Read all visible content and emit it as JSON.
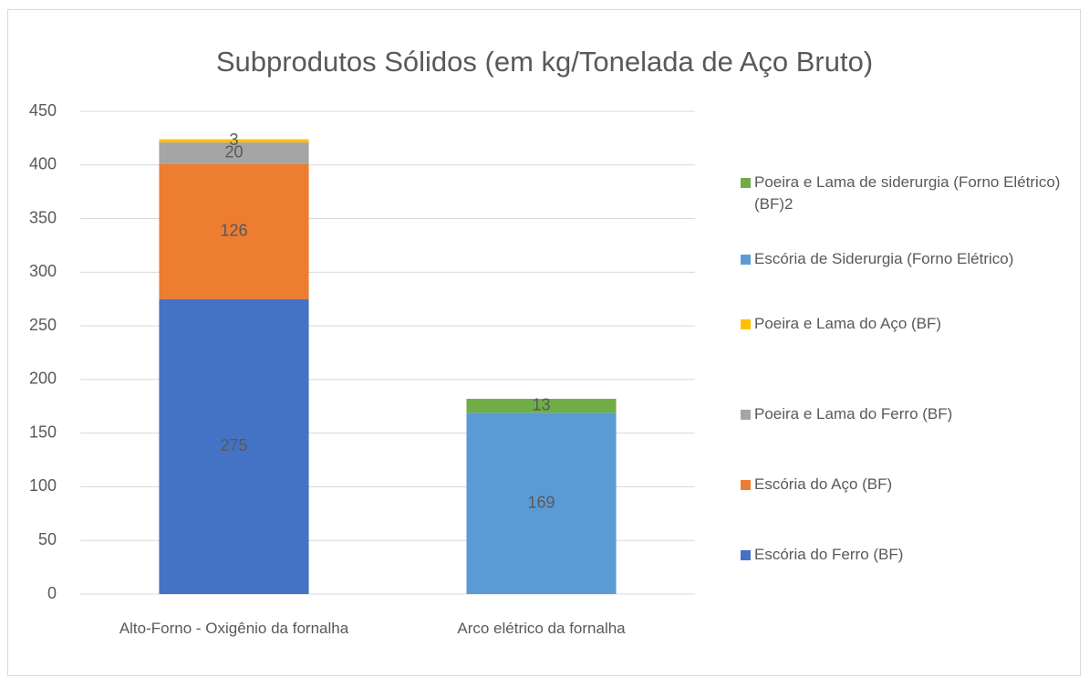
{
  "chart_data": {
    "type": "stacked_bar",
    "title": "Subprodutos Sólidos (em kg/Tonelada de Aço Bruto)",
    "categories": [
      "Alto-Forno - Oxigênio da fornalha",
      "Arco elétrico da fornalha"
    ],
    "series": [
      {
        "name": "Escória do Ferro (BF)",
        "color": "#4472c4",
        "values": [
          275,
          null
        ]
      },
      {
        "name": "Escória do Aço (BF)",
        "color": "#ed7d31",
        "values": [
          126,
          null
        ]
      },
      {
        "name": "Poeira e Lama do Ferro (BF)",
        "color": "#a5a5a5",
        "values": [
          20,
          null
        ]
      },
      {
        "name": "Poeira e Lama do Aço (BF)",
        "color": "#ffc000",
        "values": [
          3,
          null
        ]
      },
      {
        "name": "Escória de Siderurgia (Forno Elétrico)",
        "color": "#5b9bd5",
        "values": [
          null,
          169
        ]
      },
      {
        "name": "Poeira e Lama de siderurgia (Forno Elétrico) (BF)2",
        "color": "#70ad47",
        "values": [
          null,
          13
        ]
      }
    ],
    "ylim": [
      0,
      450
    ],
    "yticks": [
      0,
      50,
      100,
      150,
      200,
      250,
      300,
      350,
      400,
      450
    ],
    "grid": true,
    "legend": "right"
  }
}
